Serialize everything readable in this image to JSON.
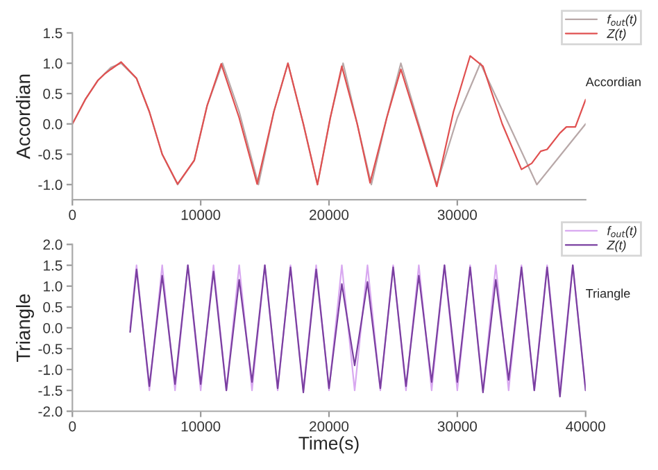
{
  "chart_data": [
    {
      "type": "line",
      "ylabel": "Accordian",
      "annotations": [
        "Accordian"
      ],
      "xlim": [
        0,
        40000
      ],
      "xticks": [
        0,
        10000,
        20000,
        30000
      ],
      "ylim": [
        -1.25,
        1.5
      ],
      "yticks": [
        {
          "value": -1,
          "label": "-1.0"
        },
        -0.5,
        {
          "value": 0,
          "label": "0.0"
        },
        0.5,
        {
          "value": 1,
          "label": "1.0"
        },
        1.5
      ],
      "grid": false,
      "legend": "top right",
      "line_style": "solid",
      "marker": "none",
      "series": [
        {
          "name": "f$_{out}$(t)",
          "color": "#b8a8a8",
          "x": [
            0,
            1000,
            2000,
            3000,
            3800,
            5000,
            6000,
            7000,
            8200,
            9500,
            10500,
            11700,
            13000,
            14500,
            15700,
            16800,
            18000,
            19100,
            20100,
            21100,
            22200,
            23300,
            24500,
            25600,
            27000,
            28400,
            30000,
            31800,
            34000,
            36200,
            38100,
            40000
          ],
          "values": [
            0,
            0.4,
            0.72,
            0.93,
            1.0,
            0.75,
            0.2,
            -0.5,
            -1.0,
            -0.6,
            0.3,
            1.0,
            0.2,
            -1.0,
            0.2,
            1.0,
            0.0,
            -1.0,
            0.1,
            1.0,
            0.0,
            -1.0,
            0.1,
            1.0,
            0.0,
            -1.0,
            0.1,
            1.0,
            0.0,
            -1.0,
            -0.5,
            0.0
          ]
        },
        {
          "name": "Z(t)",
          "color": "#e05050",
          "x": [
            0,
            1000,
            2000,
            2500,
            3000,
            3800,
            5000,
            6000,
            7000,
            8200,
            9500,
            10500,
            11600,
            13000,
            14400,
            15700,
            16800,
            18000,
            19100,
            20100,
            21000,
            22200,
            23200,
            24500,
            25600,
            27000,
            28400,
            29700,
            31000,
            32000,
            33500,
            35000,
            35800,
            36500,
            37000,
            38000,
            38500,
            39200,
            40000
          ],
          "values": [
            0,
            0.4,
            0.72,
            0.82,
            0.9,
            1.02,
            0.75,
            0.2,
            -0.5,
            -0.99,
            -0.6,
            0.3,
            0.99,
            0.1,
            -0.99,
            0.2,
            1.0,
            0.0,
            -1.0,
            0.1,
            0.95,
            0.0,
            -0.97,
            0.1,
            0.9,
            -0.05,
            -1.03,
            0.2,
            1.12,
            0.95,
            0.0,
            -0.75,
            -0.65,
            -0.45,
            -0.42,
            -0.15,
            -0.05,
            -0.05,
            0.4
          ]
        }
      ]
    },
    {
      "type": "line",
      "ylabel": "Triangle",
      "xlabel": "Time(s)",
      "annotations": [
        "Triangle"
      ],
      "xlim": [
        0,
        40000
      ],
      "xticks": [
        0,
        10000,
        20000,
        30000,
        40000
      ],
      "ylim": [
        -2.0,
        2.0
      ],
      "yticks": [
        {
          "value": -2,
          "label": "-2.0"
        },
        -1.5,
        {
          "value": -1,
          "label": "-1.0"
        },
        -0.5,
        {
          "value": 0,
          "label": "0.0"
        },
        0.5,
        {
          "value": 1,
          "label": "1.0"
        },
        1.5,
        {
          "value": 2,
          "label": "2.0"
        }
      ],
      "grid": false,
      "legend": "top right",
      "line_style": "solid",
      "marker": "none",
      "series": [
        {
          "name": "f$_{out}$(t)",
          "color": "#d8a8f0",
          "x": [
            4500,
            5000,
            6000,
            7000,
            8000,
            9000,
            10000,
            11000,
            12000,
            13000,
            14000,
            15000,
            16000,
            17000,
            18000,
            19000,
            20000,
            21000,
            22000,
            23000,
            24000,
            25000,
            26000,
            27000,
            28000,
            29000,
            30000,
            31000,
            32000,
            33000,
            34000,
            35000,
            36000,
            37000,
            38000,
            39000,
            40000
          ],
          "values": [
            0,
            1.5,
            -1.5,
            1.5,
            -1.5,
            1.5,
            -1.5,
            1.5,
            -1.5,
            1.5,
            -1.5,
            1.5,
            -1.5,
            1.5,
            -1.5,
            1.5,
            -1.5,
            1.5,
            -1.5,
            1.5,
            -1.5,
            1.5,
            -1.5,
            1.5,
            -1.5,
            1.5,
            -1.5,
            1.5,
            -1.5,
            1.5,
            -1.5,
            1.5,
            -1.5,
            1.5,
            -1.5,
            1.5,
            -1.5
          ]
        },
        {
          "name": "Z(t)",
          "color": "#7a3fa0",
          "x": [
            4500,
            5000,
            6000,
            7000,
            8000,
            9000,
            10000,
            11000,
            12000,
            13000,
            14000,
            15000,
            16000,
            17000,
            18000,
            19000,
            20000,
            21000,
            22000,
            23000,
            24000,
            25000,
            26000,
            27000,
            28000,
            29000,
            30000,
            31000,
            32000,
            33000,
            34000,
            35000,
            36000,
            37000,
            38000,
            39000,
            40000
          ],
          "values": [
            -0.1,
            1.4,
            -1.4,
            1.25,
            -1.35,
            1.5,
            -1.35,
            1.35,
            -1.5,
            1.15,
            -1.3,
            1.5,
            -1.45,
            1.45,
            -1.55,
            1.4,
            -1.45,
            1.05,
            -0.9,
            1.1,
            -1.45,
            1.45,
            -1.4,
            1.25,
            -1.3,
            1.5,
            -1.3,
            1.45,
            -1.55,
            1.15,
            -1.25,
            1.45,
            -1.5,
            1.45,
            -1.65,
            1.5,
            -1.5
          ]
        }
      ]
    }
  ]
}
